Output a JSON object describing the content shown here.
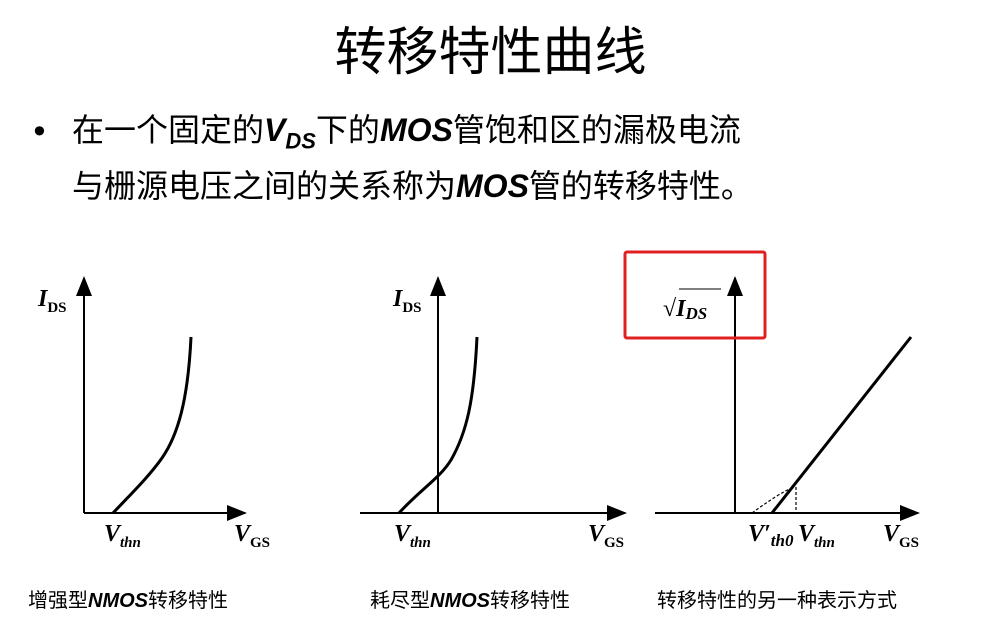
{
  "title": "转移特性曲线",
  "bullet": {
    "symbol": "•",
    "line1": {
      "a": "在一个固定的",
      "v": "V",
      "vsub": "DS",
      "b": "下的",
      "mos": "MOS",
      "c": "管饱和区的漏极电流"
    },
    "line2": {
      "a": "与栅源电压之间的关系称为",
      "mos": "MOS",
      "b": "管的转移特性。"
    }
  },
  "graphs": [
    {
      "ylabel": "I",
      "ysub": "DS",
      "vth": "V",
      "vthsub": "thn",
      "xlabel": "V",
      "xsub": "GS",
      "caption": {
        "a": "增强型",
        "b": "NMOS",
        "c": "转移特性"
      }
    },
    {
      "ylabel": "I",
      "ysub": "DS",
      "vth": "V",
      "vthsub": "thn",
      "xlabel": "V",
      "xsub": "GS",
      "caption": {
        "a": "耗尽型",
        "b": "NMOS",
        "c": "转移特性"
      }
    },
    {
      "ylabel": "√",
      "ysub": "I",
      "ysub2": "DS",
      "vth0": "V′",
      "vth0sub": "th0",
      "vth": "V",
      "vthsub": "thn",
      "xlabel": "V",
      "xsub": "GS",
      "caption": {
        "a": "转移特性的另一种表示方式"
      }
    }
  ],
  "highlight_color": "#e02020"
}
